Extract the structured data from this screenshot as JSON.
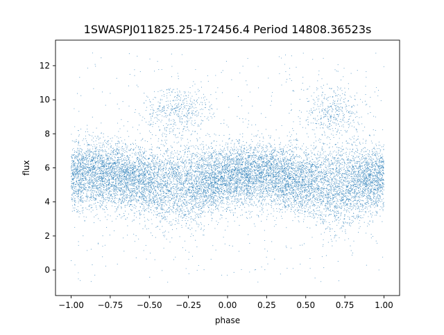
{
  "chart_data": {
    "type": "scatter",
    "title": "1SWASPJ011825.25-172456.4 Period 14808.36523s",
    "xlabel": "phase",
    "ylabel": "flux",
    "xlim": [
      -1.1,
      1.1
    ],
    "ylim": [
      -1.5,
      13.5
    ],
    "xticks": [
      -1.0,
      -0.75,
      -0.5,
      -0.25,
      0.0,
      0.25,
      0.5,
      0.75,
      1.0
    ],
    "xtick_labels": [
      "−1.00",
      "−0.75",
      "−0.50",
      "−0.25",
      "0.00",
      "0.25",
      "0.50",
      "0.75",
      "1.00"
    ],
    "yticks": [
      0,
      2,
      4,
      6,
      8,
      10,
      12
    ],
    "ytick_labels": [
      "0",
      "2",
      "4",
      "6",
      "8",
      "10",
      "12"
    ],
    "grid": false,
    "legend": "none",
    "point_color": "#1f77b4",
    "series": [
      {
        "x_range": [
          -1.0,
          1.0
        ],
        "y_range": [
          -0.8,
          12.8
        ],
        "baseline_flux": 5.3,
        "band_core": [
          4.0,
          6.8
        ],
        "band_extent": [
          3.0,
          8.6
        ],
        "bright_hump_phases": [
          -0.32,
          0.68
        ],
        "bright_hump_flux": 9.3
      }
    ]
  }
}
